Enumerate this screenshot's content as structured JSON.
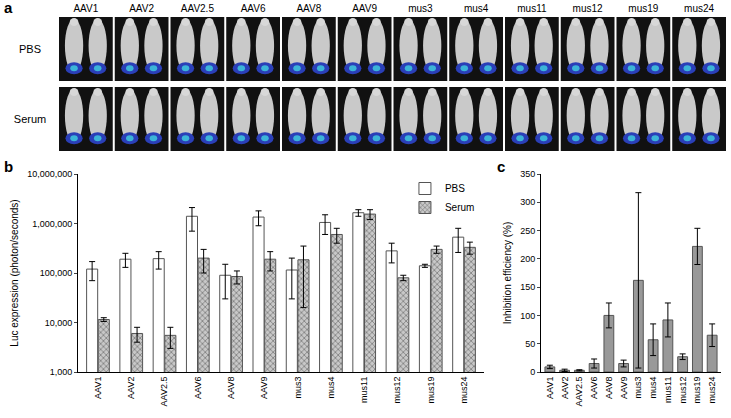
{
  "panel_a": {
    "label": "a",
    "columns": [
      "AAV1",
      "AAV2",
      "AAV2.5",
      "AAV6",
      "AAV8",
      "AAV9",
      "mus3",
      "mus4",
      "mus11",
      "mus12",
      "mus19",
      "mus24"
    ],
    "rows": [
      "PBS",
      "Serum"
    ]
  },
  "chart_data": [
    {
      "label": "b",
      "type": "bar",
      "categories": [
        "AAV1",
        "AAV2",
        "AAV2.5",
        "AAV6",
        "AAV8",
        "AAV9",
        "mus3",
        "mus4",
        "mus11",
        "mus12",
        "mus19",
        "mus24"
      ],
      "series": [
        {
          "name": "PBS",
          "color": "#ffffff",
          "values": [
            120000,
            190000,
            195000,
            1400000,
            90000,
            1350000,
            115000,
            1050000,
            1650000,
            280000,
            140000,
            530000
          ],
          "errors": [
            50000,
            60000,
            75000,
            700000,
            60000,
            450000,
            85000,
            450000,
            250000,
            120000,
            10000,
            270000
          ]
        },
        {
          "name": "Serum",
          "color": "#c8c8c8",
          "marker": "crosshatch",
          "values": [
            11500,
            6000,
            5500,
            200000,
            85000,
            190000,
            185000,
            600000,
            1550000,
            80000,
            300000,
            330000
          ],
          "errors": [
            1000,
            2000,
            2500,
            100000,
            25000,
            80000,
            165000,
            200000,
            350000,
            10000,
            50000,
            90000
          ]
        }
      ],
      "log": "y",
      "ylim": [
        1000,
        10000000
      ],
      "yticks": [
        {
          "value": 1000,
          "label": "1,000"
        },
        {
          "value": 10000,
          "label": "10,000"
        },
        {
          "value": 100000,
          "label": "100,000"
        },
        {
          "value": 1000000,
          "label": "1,000,000"
        },
        {
          "value": 10000000,
          "label": "10,000,000"
        }
      ],
      "ylabel": "Luc expression (photon/seconds)",
      "legend": "upper right"
    },
    {
      "label": "c",
      "type": "bar",
      "categories": [
        "AAV1",
        "AAV2",
        "AAV2.5",
        "AAV6",
        "AAV8",
        "AAV9",
        "mus3",
        "mus4",
        "mus11",
        "mus12",
        "mus19",
        "mus24"
      ],
      "values": [
        9,
        3,
        3,
        15,
        100,
        15,
        162,
        57,
        92,
        27,
        222,
        65
      ],
      "errors": [
        3,
        2,
        1,
        8,
        22,
        6,
        155,
        28,
        30,
        5,
        32,
        20
      ],
      "color": "#999999",
      "ylim": [
        0,
        350
      ],
      "yticks": [
        0,
        50,
        100,
        150,
        200,
        250,
        300,
        350
      ],
      "ylabel": "Inhibition efficiency (%)"
    }
  ]
}
